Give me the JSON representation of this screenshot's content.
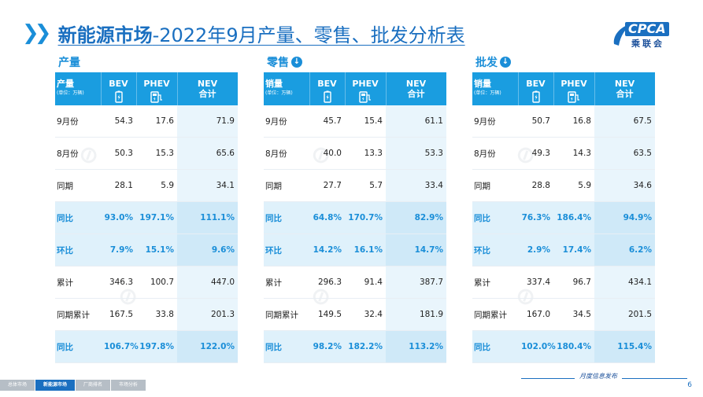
{
  "title": {
    "bold": "新能源市场",
    "rest": "-2022年9月产量、零售、批发分析表"
  },
  "logo": {
    "top": "CPCA",
    "bottom": "乘联会"
  },
  "colors": {
    "accent": "#1a8ed8",
    "header": "#1a9de0",
    "highlight": "#dff1fb",
    "brand": "#1a6fc0"
  },
  "headers": {
    "bev": "BEV",
    "phev": "PHEV",
    "nev1": "NEV",
    "nev2": "合计",
    "unit": "(单位：万辆)"
  },
  "blocks": [
    {
      "title": "产量",
      "arrow": false,
      "label": "产量",
      "rows": [
        {
          "label": "9月份",
          "bev": "54.3",
          "phev": "17.6",
          "nev": "71.9",
          "hl": false
        },
        {
          "label": "8月份",
          "bev": "50.3",
          "phev": "15.3",
          "nev": "65.6",
          "hl": false
        },
        {
          "label": "同期",
          "bev": "28.1",
          "phev": "5.9",
          "nev": "34.1",
          "hl": false
        },
        {
          "label": "同比",
          "bev": "93.0%",
          "phev": "197.1%",
          "nev": "111.1%",
          "hl": true
        },
        {
          "label": "环比",
          "bev": "7.9%",
          "phev": "15.1%",
          "nev": "9.6%",
          "hl": true
        },
        {
          "label": "累计",
          "bev": "346.3",
          "phev": "100.7",
          "nev": "447.0",
          "hl": false
        },
        {
          "label": "同期累计",
          "bev": "167.5",
          "phev": "33.8",
          "nev": "201.3",
          "hl": false
        },
        {
          "label": "同比",
          "bev": "106.7%",
          "phev": "197.8%",
          "nev": "122.0%",
          "hl": true
        }
      ]
    },
    {
      "title": "零售",
      "arrow": true,
      "label": "销量",
      "rows": [
        {
          "label": "9月份",
          "bev": "45.7",
          "phev": "15.4",
          "nev": "61.1",
          "hl": false
        },
        {
          "label": "8月份",
          "bev": "40.0",
          "phev": "13.3",
          "nev": "53.3",
          "hl": false
        },
        {
          "label": "同期",
          "bev": "27.7",
          "phev": "5.7",
          "nev": "33.4",
          "hl": false
        },
        {
          "label": "同比",
          "bev": "64.8%",
          "phev": "170.7%",
          "nev": "82.9%",
          "hl": true
        },
        {
          "label": "环比",
          "bev": "14.2%",
          "phev": "16.1%",
          "nev": "14.7%",
          "hl": true
        },
        {
          "label": "累计",
          "bev": "296.3",
          "phev": "91.4",
          "nev": "387.7",
          "hl": false
        },
        {
          "label": "同期累计",
          "bev": "149.5",
          "phev": "32.4",
          "nev": "181.9",
          "hl": false
        },
        {
          "label": "同比",
          "bev": "98.2%",
          "phev": "182.2%",
          "nev": "113.2%",
          "hl": true
        }
      ]
    },
    {
      "title": "批发",
      "arrow": true,
      "label": "销量",
      "rows": [
        {
          "label": "9月份",
          "bev": "50.7",
          "phev": "16.8",
          "nev": "67.5",
          "hl": false
        },
        {
          "label": "8月份",
          "bev": "49.3",
          "phev": "14.3",
          "nev": "63.5",
          "hl": false
        },
        {
          "label": "同期",
          "bev": "28.8",
          "phev": "5.9",
          "nev": "34.6",
          "hl": false
        },
        {
          "label": "同比",
          "bev": "76.3%",
          "phev": "186.4%",
          "nev": "94.9%",
          "hl": true
        },
        {
          "label": "环比",
          "bev": "2.9%",
          "phev": "17.4%",
          "nev": "6.2%",
          "hl": true
        },
        {
          "label": "累计",
          "bev": "337.4",
          "phev": "96.7",
          "nev": "434.1",
          "hl": false
        },
        {
          "label": "同期累计",
          "bev": "167.0",
          "phev": "34.5",
          "nev": "201.5",
          "hl": false
        },
        {
          "label": "同比",
          "bev": "102.0%",
          "phev": "180.4%",
          "nev": "115.4%",
          "hl": true
        }
      ]
    }
  ],
  "footer": {
    "nav": [
      {
        "label": "总体市场",
        "active": false
      },
      {
        "label": "新能源市场",
        "active": true
      },
      {
        "label": "厂商排名",
        "active": false
      },
      {
        "label": "市场分析",
        "active": false
      }
    ],
    "tag": "月度信息发布",
    "page": "6"
  }
}
